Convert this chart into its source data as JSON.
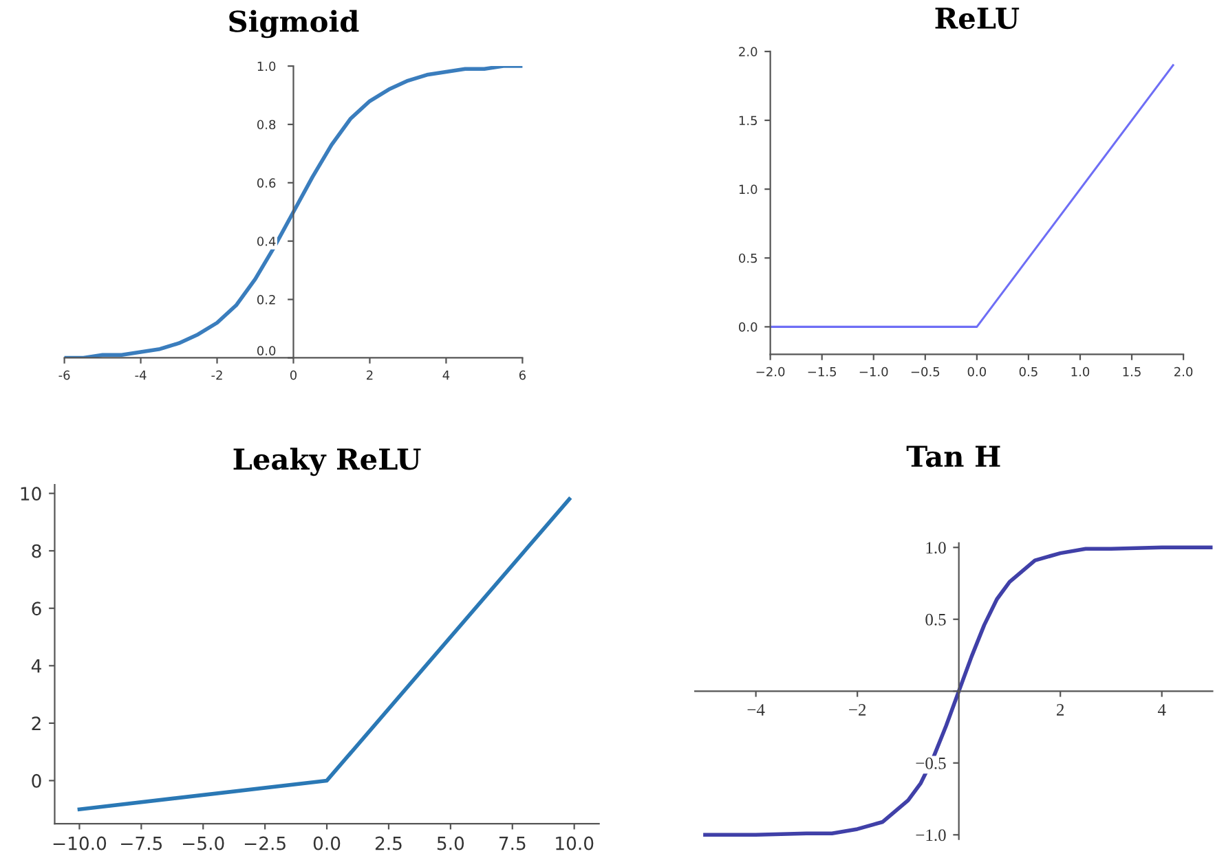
{
  "chart_data": [
    {
      "type": "line",
      "title": "Sigmoid",
      "x": [
        -6,
        -5.5,
        -5,
        -4.5,
        -4,
        -3.5,
        -3,
        -2.5,
        -2,
        -1.5,
        -1,
        -0.5,
        0,
        0.5,
        1,
        1.5,
        2,
        2.5,
        3,
        3.5,
        4,
        4.5,
        5,
        5.5,
        6
      ],
      "series": [
        {
          "color": "#3a7dbd",
          "values": [
            0.0,
            0.0,
            0.01,
            0.01,
            0.02,
            0.03,
            0.05,
            0.08,
            0.12,
            0.18,
            0.27,
            0.38,
            0.5,
            0.62,
            0.73,
            0.82,
            0.88,
            0.92,
            0.95,
            0.97,
            0.98,
            0.99,
            0.99,
            1.0,
            1.0
          ]
        }
      ],
      "xlim": [
        -6,
        6
      ],
      "ylim": [
        0,
        1
      ],
      "xticks": [
        -6,
        -4,
        -2,
        0,
        2,
        4,
        6
      ],
      "yticks": [
        {
          "value": 0,
          "label": "0.0"
        },
        0.2,
        0.4,
        0.6,
        0.8,
        {
          "value": 1,
          "label": "1.0"
        }
      ]
    },
    {
      "type": "line",
      "title": "ReLU",
      "x": [
        -2,
        0,
        1.9
      ],
      "series": [
        {
          "color": "#6e6ef5",
          "values": [
            0,
            0,
            1.9
          ]
        }
      ],
      "xlim": [
        -2,
        2
      ],
      "ylim": [
        -0.2,
        2
      ],
      "xticks": [
        {
          "value": -2,
          "label": "−2.0"
        },
        {
          "value": -1.5,
          "label": "−1.5"
        },
        {
          "value": -1,
          "label": "−1.0"
        },
        {
          "value": -0.5,
          "label": "−0.5"
        },
        {
          "value": 0,
          "label": "0.0"
        },
        0.5,
        {
          "value": 1,
          "label": "1.0"
        },
        1.5,
        {
          "value": 2,
          "label": "2.0"
        }
      ],
      "yticks": [
        {
          "value": 0,
          "label": "0.0"
        },
        0.5,
        {
          "value": 1,
          "label": "1.0"
        },
        1.5,
        {
          "value": 2,
          "label": "2.0"
        }
      ]
    },
    {
      "type": "line",
      "title": "Leaky ReLU",
      "x": [
        -10,
        0,
        9.8
      ],
      "series": [
        {
          "color": "#2a78b5",
          "values": [
            -1,
            0,
            9.8
          ]
        }
      ],
      "xlim": [
        -11,
        11
      ],
      "ylim": [
        -1.5,
        10.3
      ],
      "xticks": [
        {
          "value": -10,
          "label": "−10.0"
        },
        {
          "value": -7.5,
          "label": "−7.5"
        },
        {
          "value": -5,
          "label": "−5.0"
        },
        {
          "value": -2.5,
          "label": "−2.5"
        },
        {
          "value": 0,
          "label": "0.0"
        },
        2.5,
        {
          "value": 5,
          "label": "5.0"
        },
        7.5,
        {
          "value": 10,
          "label": "10.0"
        }
      ],
      "yticks": [
        0,
        2,
        4,
        6,
        8,
        10
      ]
    },
    {
      "type": "line",
      "title": "Tan H",
      "x": [
        -5,
        -4,
        -3,
        -2.5,
        -2,
        -1.5,
        -1,
        -0.75,
        -0.5,
        -0.25,
        0,
        0.25,
        0.5,
        0.75,
        1,
        1.5,
        2,
        2.5,
        3,
        4,
        5
      ],
      "series": [
        {
          "color": "#4040a8",
          "values": [
            -1.0,
            -1.0,
            -0.99,
            -0.99,
            -0.96,
            -0.91,
            -0.76,
            -0.64,
            -0.46,
            -0.24,
            0,
            0.24,
            0.46,
            0.64,
            0.76,
            0.91,
            0.96,
            0.99,
            0.99,
            1.0,
            1.0
          ]
        }
      ],
      "xlim": [
        -5.2,
        5
      ],
      "ylim": [
        -1.03,
        1.03
      ],
      "xticks": [
        {
          "value": -4,
          "label": "−4"
        },
        {
          "value": -2,
          "label": "−2"
        },
        {
          "value": 0,
          "label": null
        },
        2,
        4
      ],
      "yticks": [
        {
          "value": -1,
          "label": "−1.0"
        },
        {
          "value": -0.5,
          "label": "−0.5"
        },
        {
          "value": 0,
          "label": null
        },
        0.5,
        {
          "value": 1,
          "label": "1.0"
        }
      ]
    }
  ]
}
